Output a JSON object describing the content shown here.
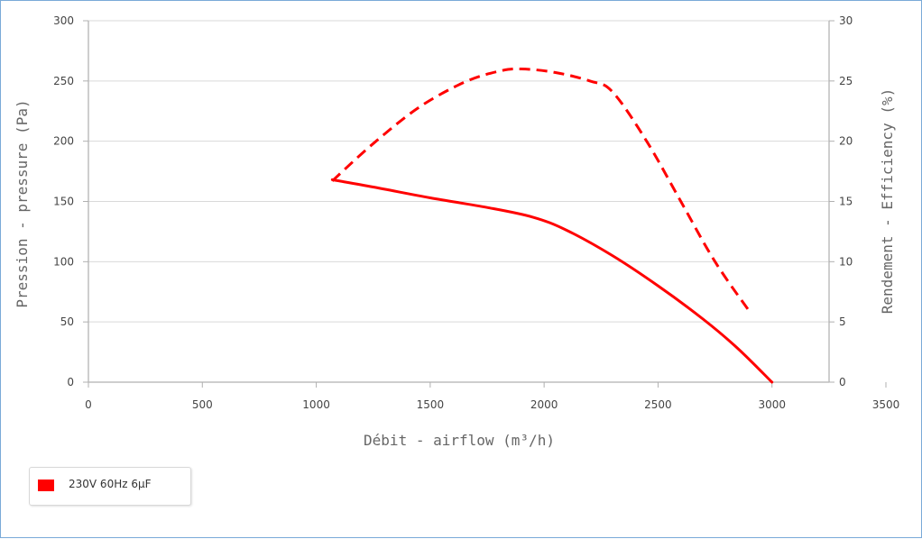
{
  "chart_data": {
    "type": "line",
    "xlabel": "Débit - airflow (m³/h)",
    "ylabel_left": "Pression - pressure (Pa)",
    "ylabel_right": "Rendement - Efficiency (%)",
    "xlim": [
      0,
      3500
    ],
    "ylim_left": [
      0,
      300
    ],
    "ylim_right": [
      0,
      30
    ],
    "x_ticks": [
      "0",
      "500",
      "1000",
      "1500",
      "2000",
      "2500",
      "3000",
      "3500"
    ],
    "y_left_ticks": [
      "0",
      "50",
      "100",
      "150",
      "200",
      "250",
      "300"
    ],
    "y_right_ticks": [
      "0",
      "5",
      "10",
      "15",
      "20",
      "25",
      "30"
    ],
    "grid": true,
    "legend_position": "bottom-left",
    "series": [
      {
        "name": "230V 60Hz 6µF",
        "color": "#ff0000",
        "pressure": {
          "axis": "left",
          "style": "solid",
          "points": [
            [
              1070,
              168
            ],
            [
              1250,
              162
            ],
            [
              1500,
              153
            ],
            [
              1750,
              145
            ],
            [
              1950,
              137
            ],
            [
              2100,
              126
            ],
            [
              2300,
              105
            ],
            [
              2500,
              80
            ],
            [
              2700,
              52
            ],
            [
              2850,
              28
            ],
            [
              3000,
              0
            ]
          ]
        },
        "efficiency": {
          "axis": "right",
          "style": "dashed",
          "points": [
            [
              1070,
              16.7
            ],
            [
              1250,
              19.8
            ],
            [
              1450,
              22.8
            ],
            [
              1650,
              24.9
            ],
            [
              1800,
              25.8
            ],
            [
              1900,
              26.0
            ],
            [
              2050,
              25.7
            ],
            [
              2200,
              25.0
            ],
            [
              2300,
              24.1
            ],
            [
              2450,
              20.0
            ],
            [
              2600,
              15.0
            ],
            [
              2750,
              10.0
            ],
            [
              2900,
              5.9
            ]
          ]
        }
      }
    ]
  }
}
